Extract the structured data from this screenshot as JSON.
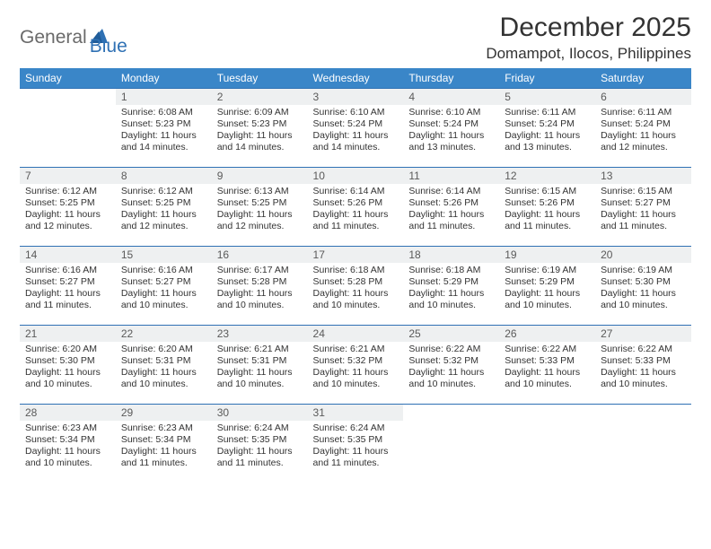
{
  "logo": {
    "text1": "General",
    "text2": "Blue"
  },
  "title": "December 2025",
  "location": "Domampot, Ilocos, Philippines",
  "colors": {
    "header_bg": "#3a86c8",
    "rule": "#2f71b4",
    "daynum_bg": "#eef0f1",
    "text": "#333333",
    "logo_gray": "#6a6a6a",
    "logo_blue": "#2f71b4",
    "page_bg": "#ffffff"
  },
  "dow": [
    "Sunday",
    "Monday",
    "Tuesday",
    "Wednesday",
    "Thursday",
    "Friday",
    "Saturday"
  ],
  "weeks": [
    [
      null,
      {
        "n": "1",
        "t": "Sunrise: 6:08 AM\nSunset: 5:23 PM\nDaylight: 11 hours and 14 minutes."
      },
      {
        "n": "2",
        "t": "Sunrise: 6:09 AM\nSunset: 5:23 PM\nDaylight: 11 hours and 14 minutes."
      },
      {
        "n": "3",
        "t": "Sunrise: 6:10 AM\nSunset: 5:24 PM\nDaylight: 11 hours and 14 minutes."
      },
      {
        "n": "4",
        "t": "Sunrise: 6:10 AM\nSunset: 5:24 PM\nDaylight: 11 hours and 13 minutes."
      },
      {
        "n": "5",
        "t": "Sunrise: 6:11 AM\nSunset: 5:24 PM\nDaylight: 11 hours and 13 minutes."
      },
      {
        "n": "6",
        "t": "Sunrise: 6:11 AM\nSunset: 5:24 PM\nDaylight: 11 hours and 12 minutes."
      }
    ],
    [
      {
        "n": "7",
        "t": "Sunrise: 6:12 AM\nSunset: 5:25 PM\nDaylight: 11 hours and 12 minutes."
      },
      {
        "n": "8",
        "t": "Sunrise: 6:12 AM\nSunset: 5:25 PM\nDaylight: 11 hours and 12 minutes."
      },
      {
        "n": "9",
        "t": "Sunrise: 6:13 AM\nSunset: 5:25 PM\nDaylight: 11 hours and 12 minutes."
      },
      {
        "n": "10",
        "t": "Sunrise: 6:14 AM\nSunset: 5:26 PM\nDaylight: 11 hours and 11 minutes."
      },
      {
        "n": "11",
        "t": "Sunrise: 6:14 AM\nSunset: 5:26 PM\nDaylight: 11 hours and 11 minutes."
      },
      {
        "n": "12",
        "t": "Sunrise: 6:15 AM\nSunset: 5:26 PM\nDaylight: 11 hours and 11 minutes."
      },
      {
        "n": "13",
        "t": "Sunrise: 6:15 AM\nSunset: 5:27 PM\nDaylight: 11 hours and 11 minutes."
      }
    ],
    [
      {
        "n": "14",
        "t": "Sunrise: 6:16 AM\nSunset: 5:27 PM\nDaylight: 11 hours and 11 minutes."
      },
      {
        "n": "15",
        "t": "Sunrise: 6:16 AM\nSunset: 5:27 PM\nDaylight: 11 hours and 10 minutes."
      },
      {
        "n": "16",
        "t": "Sunrise: 6:17 AM\nSunset: 5:28 PM\nDaylight: 11 hours and 10 minutes."
      },
      {
        "n": "17",
        "t": "Sunrise: 6:18 AM\nSunset: 5:28 PM\nDaylight: 11 hours and 10 minutes."
      },
      {
        "n": "18",
        "t": "Sunrise: 6:18 AM\nSunset: 5:29 PM\nDaylight: 11 hours and 10 minutes."
      },
      {
        "n": "19",
        "t": "Sunrise: 6:19 AM\nSunset: 5:29 PM\nDaylight: 11 hours and 10 minutes."
      },
      {
        "n": "20",
        "t": "Sunrise: 6:19 AM\nSunset: 5:30 PM\nDaylight: 11 hours and 10 minutes."
      }
    ],
    [
      {
        "n": "21",
        "t": "Sunrise: 6:20 AM\nSunset: 5:30 PM\nDaylight: 11 hours and 10 minutes."
      },
      {
        "n": "22",
        "t": "Sunrise: 6:20 AM\nSunset: 5:31 PM\nDaylight: 11 hours and 10 minutes."
      },
      {
        "n": "23",
        "t": "Sunrise: 6:21 AM\nSunset: 5:31 PM\nDaylight: 11 hours and 10 minutes."
      },
      {
        "n": "24",
        "t": "Sunrise: 6:21 AM\nSunset: 5:32 PM\nDaylight: 11 hours and 10 minutes."
      },
      {
        "n": "25",
        "t": "Sunrise: 6:22 AM\nSunset: 5:32 PM\nDaylight: 11 hours and 10 minutes."
      },
      {
        "n": "26",
        "t": "Sunrise: 6:22 AM\nSunset: 5:33 PM\nDaylight: 11 hours and 10 minutes."
      },
      {
        "n": "27",
        "t": "Sunrise: 6:22 AM\nSunset: 5:33 PM\nDaylight: 11 hours and 10 minutes."
      }
    ],
    [
      {
        "n": "28",
        "t": "Sunrise: 6:23 AM\nSunset: 5:34 PM\nDaylight: 11 hours and 10 minutes."
      },
      {
        "n": "29",
        "t": "Sunrise: 6:23 AM\nSunset: 5:34 PM\nDaylight: 11 hours and 11 minutes."
      },
      {
        "n": "30",
        "t": "Sunrise: 6:24 AM\nSunset: 5:35 PM\nDaylight: 11 hours and 11 minutes."
      },
      {
        "n": "31",
        "t": "Sunrise: 6:24 AM\nSunset: 5:35 PM\nDaylight: 11 hours and 11 minutes."
      },
      null,
      null,
      null
    ]
  ]
}
